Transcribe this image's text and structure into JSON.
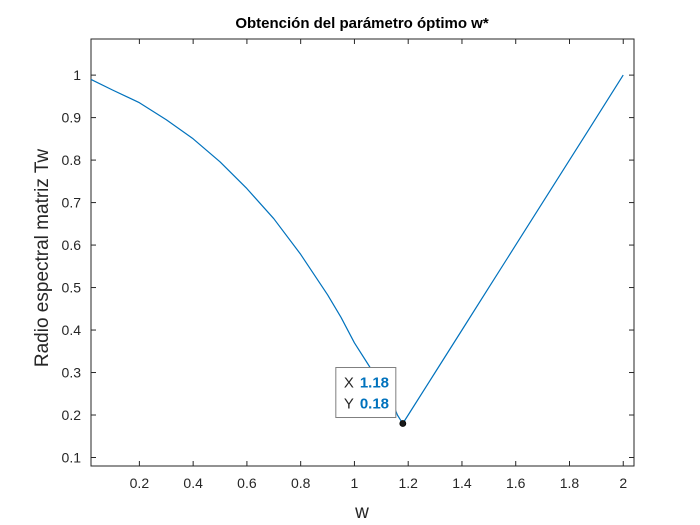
{
  "chart_data": {
    "type": "line",
    "title": "Obtención del parámetro óptimo w*",
    "xlabel": "w",
    "ylabel": "Radio espectral matriz Tw",
    "xlim": [
      0.02,
      2.04
    ],
    "ylim": [
      0.08,
      1.085
    ],
    "x_ticks": [
      0.2,
      0.4,
      0.6,
      0.8,
      1,
      1.2,
      1.4,
      1.6,
      1.8,
      2
    ],
    "x_tick_labels": [
      "0.2",
      "0.4",
      "0.6",
      "0.8",
      "1",
      "1.2",
      "1.4",
      "1.6",
      "1.8",
      "2"
    ],
    "y_ticks": [
      0.1,
      0.2,
      0.3,
      0.4,
      0.5,
      0.6,
      0.7,
      0.8,
      0.9,
      1
    ],
    "y_tick_labels": [
      "0.1",
      "0.2",
      "0.3",
      "0.4",
      "0.5",
      "0.6",
      "0.7",
      "0.8",
      "0.9",
      "1"
    ],
    "grid": false,
    "series": [
      {
        "color": "#0072BD",
        "x": [
          0.02,
          0.1,
          0.2,
          0.3,
          0.4,
          0.5,
          0.6,
          0.7,
          0.8,
          0.9,
          0.95,
          1.0,
          1.05,
          1.08,
          1.11,
          1.13,
          1.15,
          1.16,
          1.17,
          1.18,
          1.2,
          1.3,
          1.4,
          1.5,
          1.6,
          1.7,
          1.8,
          1.9,
          2.0
        ],
        "y": [
          0.99,
          0.965,
          0.935,
          0.895,
          0.85,
          0.796,
          0.733,
          0.662,
          0.578,
          0.483,
          0.43,
          0.37,
          0.32,
          0.29,
          0.255,
          0.235,
          0.215,
          0.2,
          0.19,
          0.18,
          0.2,
          0.3,
          0.4,
          0.5,
          0.6,
          0.7,
          0.8,
          0.9,
          1.0
        ]
      }
    ],
    "datatip": {
      "x": 1.18,
      "y": 0.18,
      "x_key": "X",
      "y_key": "Y",
      "x_text": "1.18",
      "y_text": "0.18",
      "value_color": "#0072BD"
    }
  }
}
